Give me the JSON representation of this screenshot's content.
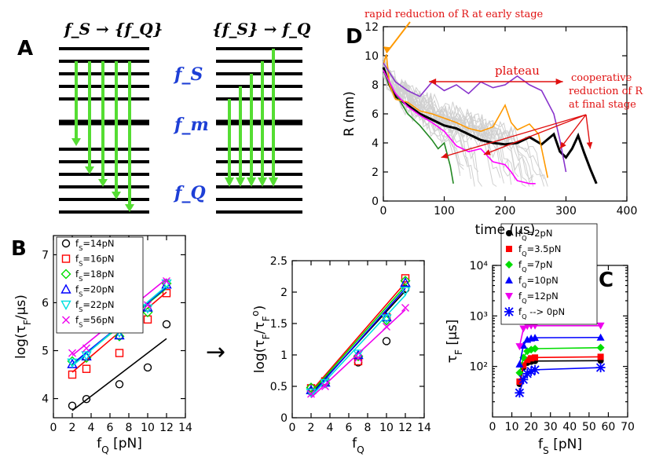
{
  "figure": {
    "panels": [
      "A",
      "B",
      "C",
      "D"
    ],
    "arrow_glyph": "→"
  },
  "panelA": {
    "left_title": "f_S → {f_Q}",
    "right_title": "{f_S} → f_Q",
    "level_labels": [
      "f_S",
      "f_m",
      "f_Q"
    ],
    "colors": {
      "arrow": "#55dd33",
      "level": "#000000",
      "label": "#1e3fd6"
    }
  },
  "chart_data": [
    {
      "id": "B1",
      "type": "scatter",
      "xlabel": "f_Q [pN]",
      "ylabel": "log(τ_F/μs)",
      "xlim": [
        0,
        14
      ],
      "ylim": [
        3.6,
        7.4
      ],
      "xticks": [
        0,
        2,
        4,
        6,
        8,
        10,
        12,
        14
      ],
      "yticks": [
        4,
        5,
        6,
        7
      ],
      "series": [
        {
          "name": "f_S=14pN",
          "color": "#000000",
          "marker": "circle",
          "x": [
            2,
            3.5,
            7,
            10,
            12
          ],
          "y": [
            3.85,
            3.99,
            4.3,
            4.65,
            5.55
          ],
          "fit": [
            [
              2,
              3.75
            ],
            [
              12,
              5.25
            ]
          ]
        },
        {
          "name": "f_S=16pN",
          "color": "#ff0000",
          "marker": "square",
          "x": [
            2,
            3.5,
            7,
            10,
            12
          ],
          "y": [
            4.5,
            4.62,
            4.95,
            5.65,
            6.2
          ],
          "fit": [
            [
              2,
              4.55
            ],
            [
              12,
              6.22
            ]
          ]
        },
        {
          "name": "f_S=18pN",
          "color": "#00dd00",
          "marker": "diamond",
          "x": [
            2,
            3.5,
            7,
            10,
            12
          ],
          "y": [
            4.78,
            4.85,
            5.3,
            5.8,
            6.4
          ],
          "fit": [
            [
              2,
              4.7
            ],
            [
              12,
              6.3
            ]
          ]
        },
        {
          "name": "f_S=20pN",
          "color": "#0000ff",
          "marker": "triangle-up",
          "x": [
            2,
            3.5,
            7,
            10,
            12
          ],
          "y": [
            4.72,
            4.88,
            5.32,
            5.9,
            6.38
          ],
          "fit": [
            [
              2,
              4.72
            ],
            [
              12,
              6.32
            ]
          ]
        },
        {
          "name": "f_S=22pN",
          "color": "#00e0e0",
          "marker": "triangle-down",
          "x": [
            2,
            3.5,
            7,
            10,
            12
          ],
          "y": [
            4.75,
            4.9,
            5.38,
            5.88,
            6.4
          ],
          "fit": [
            [
              2,
              4.68
            ],
            [
              12,
              6.35
            ]
          ]
        },
        {
          "name": "f_S=56pN",
          "color": "#ee00ee",
          "marker": "cross",
          "x": [
            2,
            3.5,
            7,
            10,
            12
          ],
          "y": [
            4.95,
            5.05,
            5.45,
            5.95,
            6.45
          ],
          "fit": [
            [
              2,
              4.9
            ],
            [
              12,
              6.5
            ]
          ]
        }
      ]
    },
    {
      "id": "B2",
      "type": "scatter",
      "xlabel": "f_Q",
      "ylabel": "log(τ_F/τ_F^o)",
      "xlim": [
        0,
        14
      ],
      "ylim": [
        0,
        2.5
      ],
      "xticks": [
        0,
        2,
        4,
        6,
        8,
        10,
        12,
        14
      ],
      "yticks": [
        0,
        0.5,
        1,
        1.5,
        2,
        2.5
      ],
      "series": [
        {
          "name": "f_S=14pN",
          "color": "#000000",
          "marker": "circle",
          "x": [
            2,
            3.5,
            7,
            10,
            12
          ],
          "y": [
            0.42,
            0.58,
            0.88,
            1.22,
            2.05
          ],
          "fit": [
            [
              2,
              0.38
            ],
            [
              12,
              2.02
            ]
          ]
        },
        {
          "name": "f_S=16pN",
          "color": "#ff0000",
          "marker": "square",
          "x": [
            2,
            3.5,
            7,
            10,
            12
          ],
          "y": [
            0.47,
            0.58,
            0.9,
            1.6,
            2.22
          ],
          "fit": [
            [
              2,
              0.42
            ],
            [
              12,
              2.15
            ]
          ]
        },
        {
          "name": "f_S=18pN",
          "color": "#00dd00",
          "marker": "diamond",
          "x": [
            2,
            3.5,
            7,
            10,
            12
          ],
          "y": [
            0.48,
            0.55,
            0.98,
            1.55,
            2.18
          ],
          "fit": [
            [
              2,
              0.4
            ],
            [
              12,
              2.1
            ]
          ]
        },
        {
          "name": "f_S=20pN",
          "color": "#0000ff",
          "marker": "triangle-up",
          "x": [
            2,
            3.5,
            7,
            10,
            12
          ],
          "y": [
            0.44,
            0.56,
            1.0,
            1.6,
            2.15
          ],
          "fit": [
            [
              2,
              0.36
            ],
            [
              12,
              2.06
            ]
          ]
        },
        {
          "name": "f_S=22pN",
          "color": "#00e0e0",
          "marker": "triangle-down",
          "x": [
            2,
            3.5,
            7,
            10,
            12
          ],
          "y": [
            0.4,
            0.55,
            1.02,
            1.58,
            2.02
          ],
          "fit": [
            [
              2,
              0.34
            ],
            [
              12,
              1.95
            ]
          ]
        },
        {
          "name": "f_S=56pN",
          "color": "#ee00ee",
          "marker": "cross",
          "x": [
            2,
            3.5,
            7,
            10,
            12
          ],
          "y": [
            0.38,
            0.5,
            0.95,
            1.45,
            1.75
          ],
          "fit": [
            [
              2,
              0.32
            ],
            [
              12,
              1.72
            ]
          ]
        }
      ]
    },
    {
      "id": "C",
      "type": "line",
      "xlabel": "f_S [pN]",
      "ylabel": "τ_F [μs]",
      "yscale": "log",
      "xlim": [
        0,
        70
      ],
      "ylim": [
        10,
        10000
      ],
      "xticks": [
        0,
        10,
        20,
        30,
        40,
        50,
        60,
        70
      ],
      "yticks": [
        100,
        1000,
        10000
      ],
      "ytick_labels": [
        "10²",
        "10³",
        "10⁴"
      ],
      "series": [
        {
          "name": "f_Q=2pN",
          "color": "#000000",
          "marker": "circle",
          "x": [
            14,
            16,
            18,
            20,
            22,
            56
          ],
          "y": [
            45,
            95,
            118,
            124,
            128,
            130
          ]
        },
        {
          "name": "f_Q=3.5pN",
          "color": "#ff0000",
          "marker": "square",
          "x": [
            14,
            16,
            18,
            20,
            22,
            56
          ],
          "y": [
            50,
            105,
            135,
            145,
            150,
            155
          ]
        },
        {
          "name": "f_Q=7pN",
          "color": "#00dd00",
          "marker": "diamond",
          "x": [
            14,
            16,
            18,
            20,
            22,
            56
          ],
          "y": [
            75,
            150,
            200,
            215,
            225,
            235
          ]
        },
        {
          "name": "f_Q=10pN",
          "color": "#0000ff",
          "marker": "triangle-up",
          "x": [
            14,
            16,
            18,
            20,
            22,
            56
          ],
          "y": [
            110,
            260,
            340,
            360,
            370,
            375
          ]
        },
        {
          "name": "f_Q=12pN",
          "color": "#ee00ee",
          "marker": "triangle-down",
          "x": [
            14,
            16,
            18,
            20,
            22,
            56
          ],
          "y": [
            250,
            560,
            630,
            640,
            640,
            640
          ]
        },
        {
          "name": "f_Q --> 0pN",
          "color": "#0000ff",
          "marker": "star",
          "x": [
            14,
            16,
            18,
            20,
            22,
            56
          ],
          "y": [
            30,
            55,
            72,
            80,
            86,
            95
          ]
        }
      ]
    },
    {
      "id": "D",
      "type": "line",
      "xlabel": "time (μs)",
      "ylabel": "R (nm)",
      "xlim": [
        0,
        400
      ],
      "ylim": [
        0,
        12
      ],
      "xticks": [
        0,
        100,
        200,
        300,
        400
      ],
      "yticks": [
        0,
        2,
        4,
        6,
        8,
        10,
        12
      ],
      "series": [
        {
          "name": "average",
          "color": "#000000",
          "x": [
            0,
            10,
            20,
            40,
            60,
            80,
            100,
            120,
            140,
            160,
            180,
            200,
            220,
            240,
            260,
            280,
            290,
            300,
            310,
            320,
            330,
            340,
            350
          ],
          "y": [
            9.2,
            8.0,
            7.2,
            6.6,
            6.0,
            5.6,
            5.2,
            5.0,
            4.6,
            4.2,
            4.0,
            3.9,
            4.0,
            4.4,
            3.9,
            4.6,
            3.4,
            3.0,
            3.6,
            4.5,
            3.3,
            2.2,
            1.2
          ]
        },
        {
          "name": "green",
          "color": "#228822",
          "x": [
            0,
            10,
            20,
            40,
            60,
            80,
            90,
            100,
            110,
            115
          ],
          "y": [
            9.0,
            8.0,
            7.4,
            6.0,
            5.2,
            4.2,
            3.6,
            4.0,
            2.4,
            1.2
          ]
        },
        {
          "name": "orange",
          "color": "#ff9900",
          "x": [
            0,
            5,
            10,
            20,
            40,
            60,
            80,
            100,
            120,
            140,
            160,
            180,
            200,
            210,
            220,
            240,
            255,
            270
          ],
          "y": [
            9.4,
            10.1,
            8.0,
            7.0,
            6.8,
            6.2,
            6.0,
            5.7,
            5.4,
            5.0,
            4.8,
            5.1,
            6.6,
            5.4,
            4.9,
            5.3,
            4.6,
            1.6
          ]
        },
        {
          "name": "magenta",
          "color": "#ff00ff",
          "x": [
            0,
            20,
            40,
            60,
            80,
            100,
            120,
            140,
            160,
            180,
            200,
            210,
            220,
            240,
            250
          ],
          "y": [
            9.0,
            7.4,
            6.5,
            5.9,
            5.4,
            4.8,
            3.8,
            3.4,
            3.6,
            2.7,
            2.5,
            2.0,
            1.4,
            1.2,
            1.2
          ]
        },
        {
          "name": "purple",
          "color": "#8833cc",
          "x": [
            0,
            20,
            40,
            60,
            80,
            100,
            120,
            140,
            160,
            180,
            200,
            220,
            240,
            260,
            280,
            290,
            300
          ],
          "y": [
            9.5,
            8.2,
            7.6,
            7.2,
            8.2,
            7.6,
            8.0,
            7.4,
            8.2,
            7.8,
            8.0,
            8.6,
            8.0,
            7.6,
            6.0,
            4.2,
            2.0
          ]
        }
      ],
      "background": {
        "name": "gray trajectories",
        "color": "#d0d0d0",
        "count": 24
      },
      "annotations": {
        "rapid": "rapid reduction of R at early stage",
        "plateau": "plateau",
        "coop1": "cooperative",
        "coop2": "reduction of R",
        "coop3": "at final stage"
      }
    }
  ]
}
